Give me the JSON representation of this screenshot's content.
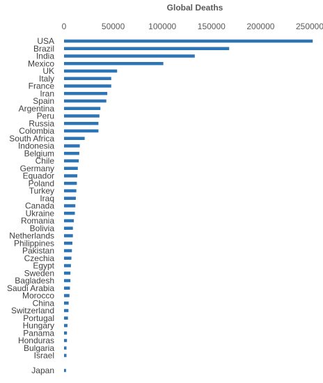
{
  "chart_data": {
    "type": "bar",
    "orientation": "horizontal",
    "title": "Global Deaths",
    "xlabel": "",
    "ylabel": "",
    "xlim": [
      0,
      250000
    ],
    "xticks": [
      "0",
      "50000",
      "100000",
      "150000",
      "200000",
      "250000"
    ],
    "x_axis_position": "top",
    "grid": false,
    "legend": "none",
    "bar_color": "#2e75b6",
    "categories": [
      "USA",
      "Brazil",
      "India",
      "Mexico",
      "UK",
      "Italy",
      "France",
      "Iran",
      "Spain",
      "Argentina",
      "Peru",
      "Russia",
      "Colombia",
      "South Africa",
      "Indonesia",
      "Belgium",
      "Chile",
      "Germany",
      "Equador",
      "Poland",
      "Turkey",
      "Iraq",
      "Canada",
      "Ukraine",
      "Romania",
      "Bolivia",
      "Netherlands",
      "Philippines",
      "Pakistan",
      "Czechia",
      "Egypt",
      "Sweden",
      "Bagladesh",
      "Saudi Arabia",
      "Morocco",
      "China",
      "Switzerland",
      "Portugal",
      "Hungary",
      "Panama",
      "Honduras",
      "Bulgaria",
      "Israel",
      "",
      "Japan"
    ],
    "values": [
      253000,
      168000,
      133000,
      101000,
      54000,
      48000,
      48000,
      44000,
      43000,
      37000,
      36000,
      35000,
      35000,
      21000,
      16000,
      15500,
      15000,
      14000,
      13500,
      13000,
      12500,
      12000,
      11500,
      11000,
      10000,
      9000,
      9000,
      8500,
      8000,
      7500,
      7000,
      6500,
      6500,
      6000,
      5500,
      4700,
      4500,
      4000,
      3500,
      3000,
      3000,
      2500,
      2500,
      0,
      2000
    ]
  }
}
